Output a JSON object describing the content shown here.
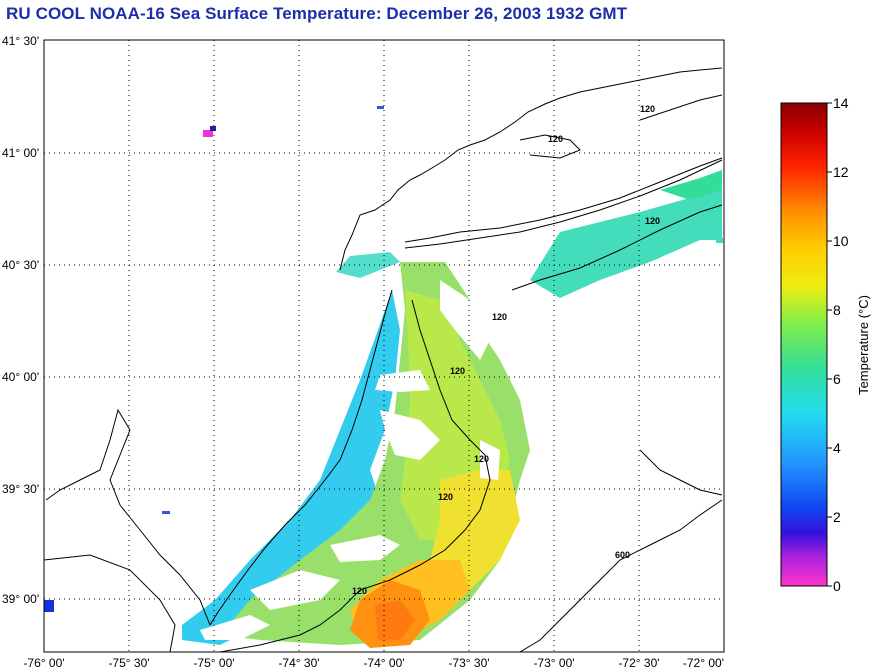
{
  "title": "RU COOL  NOAA-16  Sea Surface Temperature:  December 26, 2003 1932 GMT",
  "map": {
    "lat_ticks": [
      "41° 30'",
      "41° 00'",
      "40° 30'",
      "40° 00'",
      "39° 30'",
      "39° 00'"
    ],
    "lon_ticks": [
      "-76° 00'",
      "-75° 30'",
      "-75° 00'",
      "-74° 30'",
      "-74° 00'",
      "-73° 30'",
      "-73° 00'",
      "-72° 30'",
      "-72° 00'"
    ],
    "grid": "dotted",
    "contour_labels": [
      "120",
      "120",
      "120",
      "120",
      "120",
      "120",
      "120",
      "120",
      "600"
    ]
  },
  "colorbar": {
    "label": "Temperature (°C)",
    "ticks": [
      "14",
      "12",
      "10",
      "8",
      "6",
      "4",
      "2",
      "0"
    ],
    "range": [
      0,
      14
    ],
    "colors": [
      "#ff33cc",
      "#8822ee",
      "#1111dd",
      "#2288ff",
      "#22ddee",
      "#33dd99",
      "#88ee44",
      "#eeee11",
      "#ffcc00",
      "#ff8800",
      "#ff3300",
      "#cc0000",
      "#8b0000"
    ]
  }
}
